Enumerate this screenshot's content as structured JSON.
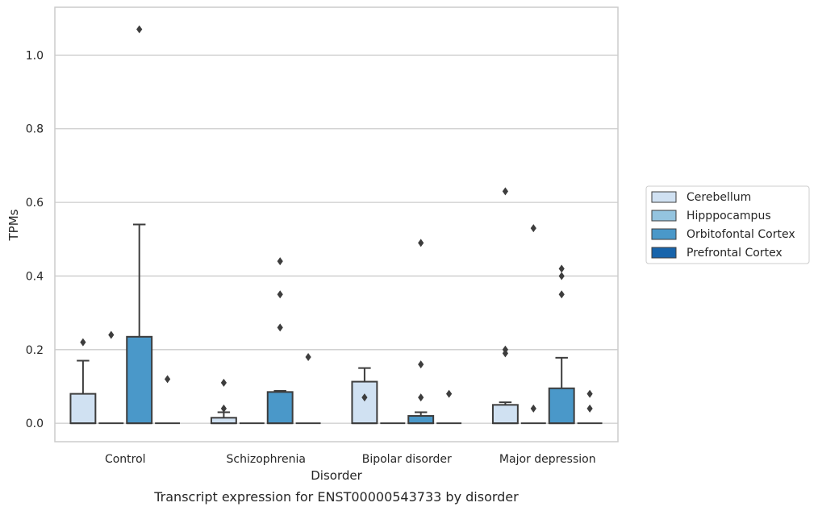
{
  "chart_data": {
    "type": "box",
    "title": "",
    "caption": "Transcript expression for ENST00000543733 by disorder",
    "xlabel": "Disorder",
    "ylabel": "TPMs",
    "ylim": [
      -0.05,
      1.13
    ],
    "yticks": [
      "0.0",
      "0.2",
      "0.4",
      "0.6",
      "0.8",
      "1.0"
    ],
    "ytick_values": [
      0,
      0.2,
      0.4,
      0.6,
      0.8,
      1.0
    ],
    "grid": "horizontal",
    "legend_position": "right",
    "categories": [
      "Control",
      "Schizophrenia",
      "Bipolar disorder",
      "Major depression"
    ],
    "series": [
      {
        "name": "Cerebellum",
        "color": "#d0e1f2",
        "boxes": [
          {
            "q1": 0,
            "median": 0,
            "q3": 0.08,
            "whisker_low": 0,
            "whisker_high": 0.17,
            "outliers": [
              0.22
            ]
          },
          {
            "q1": 0,
            "median": 0,
            "q3": 0.015,
            "whisker_low": 0,
            "whisker_high": 0.03,
            "outliers": [
              0.04,
              0.11
            ]
          },
          {
            "q1": 0,
            "median": 0,
            "q3": 0.113,
            "whisker_low": 0,
            "whisker_high": 0.15,
            "outliers": [
              0.07
            ]
          },
          {
            "q1": 0,
            "median": 0,
            "q3": 0.05,
            "whisker_low": 0,
            "whisker_high": 0.057,
            "outliers": [
              0.19,
              0.2,
              0.63
            ]
          }
        ]
      },
      {
        "name": "Hipppocampus",
        "color": "#94c4df",
        "boxes": [
          {
            "q1": 0,
            "median": 0,
            "q3": 0,
            "whisker_low": 0,
            "whisker_high": 0,
            "outliers": [
              0.24
            ]
          },
          {
            "q1": 0,
            "median": 0,
            "q3": 0,
            "whisker_low": 0,
            "whisker_high": 0,
            "outliers": []
          },
          {
            "q1": 0,
            "median": 0,
            "q3": 0,
            "whisker_low": 0,
            "whisker_high": 0,
            "outliers": []
          },
          {
            "q1": 0,
            "median": 0,
            "q3": 0,
            "whisker_low": 0,
            "whisker_high": 0,
            "outliers": [
              0.04,
              0.53
            ]
          }
        ]
      },
      {
        "name": "Orbitofontal Cortex",
        "color": "#4a98c9",
        "boxes": [
          {
            "q1": 0,
            "median": 0,
            "q3": 0.235,
            "whisker_low": 0,
            "whisker_high": 0.54,
            "outliers": [
              1.07
            ]
          },
          {
            "q1": 0,
            "median": 0,
            "q3": 0.085,
            "whisker_low": 0,
            "whisker_high": 0.088,
            "outliers": [
              0.26,
              0.35,
              0.44
            ]
          },
          {
            "q1": 0,
            "median": 0,
            "q3": 0.02,
            "whisker_low": 0,
            "whisker_high": 0.03,
            "outliers": [
              0.07,
              0.16,
              0.49
            ]
          },
          {
            "q1": 0,
            "median": 0,
            "q3": 0.095,
            "whisker_low": 0,
            "whisker_high": 0.178,
            "outliers": [
              0.35,
              0.4,
              0.42
            ]
          }
        ]
      },
      {
        "name": "Prefrontal Cortex",
        "color": "#1764ab",
        "boxes": [
          {
            "q1": 0,
            "median": 0,
            "q3": 0,
            "whisker_low": 0,
            "whisker_high": 0,
            "outliers": [
              0.12
            ]
          },
          {
            "q1": 0,
            "median": 0,
            "q3": 0,
            "whisker_low": 0,
            "whisker_high": 0,
            "outliers": [
              0.18
            ]
          },
          {
            "q1": 0,
            "median": 0,
            "q3": 0,
            "whisker_low": 0,
            "whisker_high": 0,
            "outliers": [
              0.08
            ]
          },
          {
            "q1": 0,
            "median": 0,
            "q3": 0,
            "whisker_low": 0,
            "whisker_high": 0,
            "outliers": [
              0.04,
              0.08
            ]
          }
        ]
      }
    ]
  }
}
